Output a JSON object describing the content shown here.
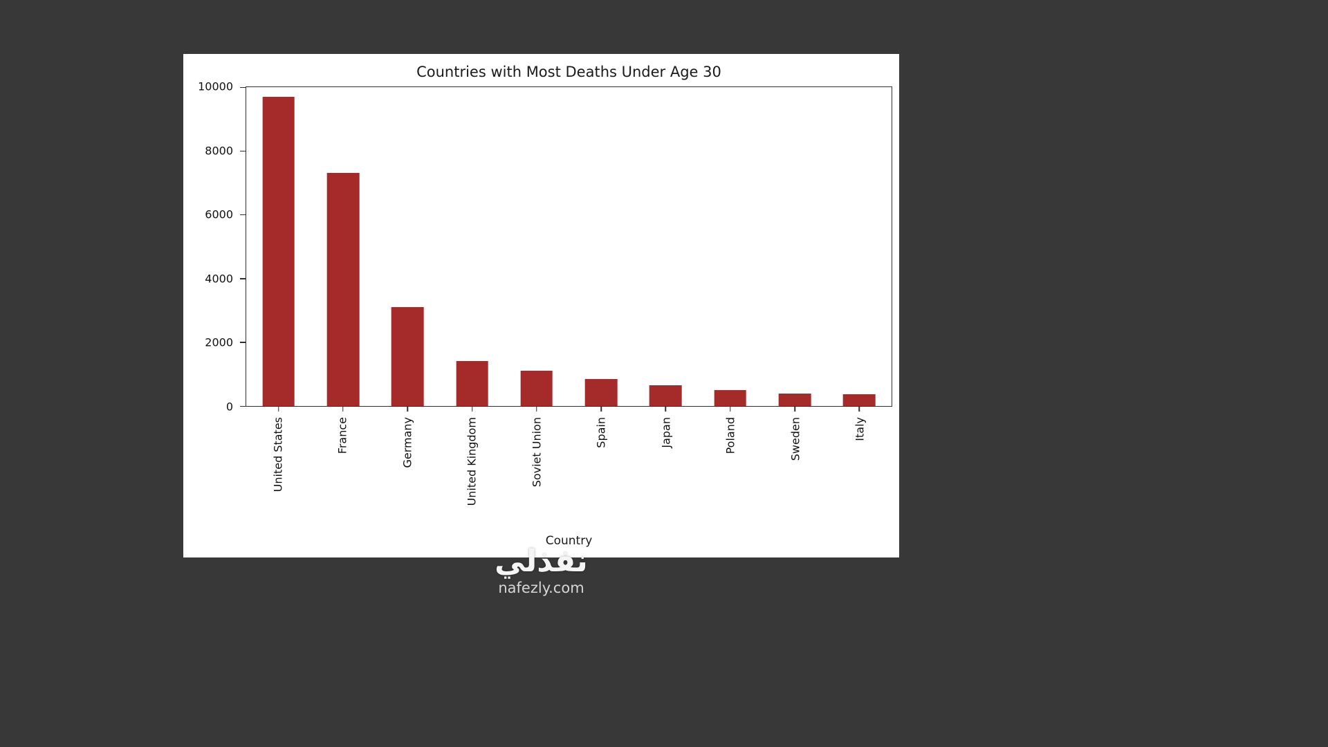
{
  "page": {
    "watermark_title": "نفذلي",
    "watermark_site": "nafezly.com"
  },
  "colors": {
    "page_bg": "#383838",
    "panel_bg": "#ffffff",
    "bar_color": "#a52a2a",
    "axis_color": "#2e2e2e",
    "text_color": "#111111",
    "watermark_color": "#f5f5f5"
  },
  "chart_data": {
    "type": "bar",
    "title": "Countries with Most Deaths Under Age 30",
    "xlabel": "Country",
    "ylabel": "",
    "categories": [
      "United States",
      "France",
      "Germany",
      "United Kingdom",
      "Soviet Union",
      "Spain",
      "Japan",
      "Poland",
      "Sweden",
      "Italy"
    ],
    "values": [
      9700,
      7300,
      3100,
      1400,
      1100,
      850,
      650,
      500,
      380,
      370
    ],
    "y_ticks": [
      0,
      2000,
      4000,
      6000,
      8000,
      10000
    ],
    "ylim": [
      0,
      10000
    ],
    "bar_color": "#a52a2a",
    "grid": false,
    "legend": false,
    "x_tick_rotation": 90
  }
}
